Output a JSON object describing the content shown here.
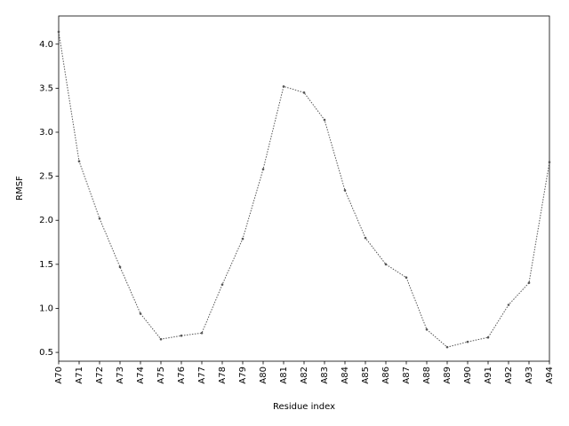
{
  "chart_data": {
    "type": "line",
    "x_label": "Residue index",
    "y_label": "RMSF",
    "categories": [
      "A70",
      "A71",
      "A72",
      "A73",
      "A74",
      "A75",
      "A76",
      "A77",
      "A78",
      "A79",
      "A80",
      "A81",
      "A82",
      "A83",
      "A84",
      "A85",
      "A86",
      "A87",
      "A88",
      "A89",
      "A90",
      "A91",
      "A92",
      "A93",
      "A94"
    ],
    "values": [
      4.14,
      2.67,
      2.02,
      1.47,
      0.94,
      0.65,
      0.69,
      0.72,
      1.27,
      1.79,
      2.58,
      3.52,
      3.45,
      3.14,
      2.34,
      1.8,
      1.5,
      1.35,
      0.76,
      0.56,
      0.62,
      0.67,
      1.04,
      1.29,
      2.66
    ],
    "color": "#555555",
    "ylim": [
      0.4,
      4.32
    ],
    "yticks": [
      0.5,
      {
        "value": 1.0,
        "label": "1.0"
      },
      1.5,
      {
        "value": 2.0,
        "label": "2.0"
      },
      2.5,
      {
        "value": 3.0,
        "label": "3.0"
      },
      3.5,
      {
        "value": 4.0,
        "label": "4.0"
      }
    ]
  }
}
